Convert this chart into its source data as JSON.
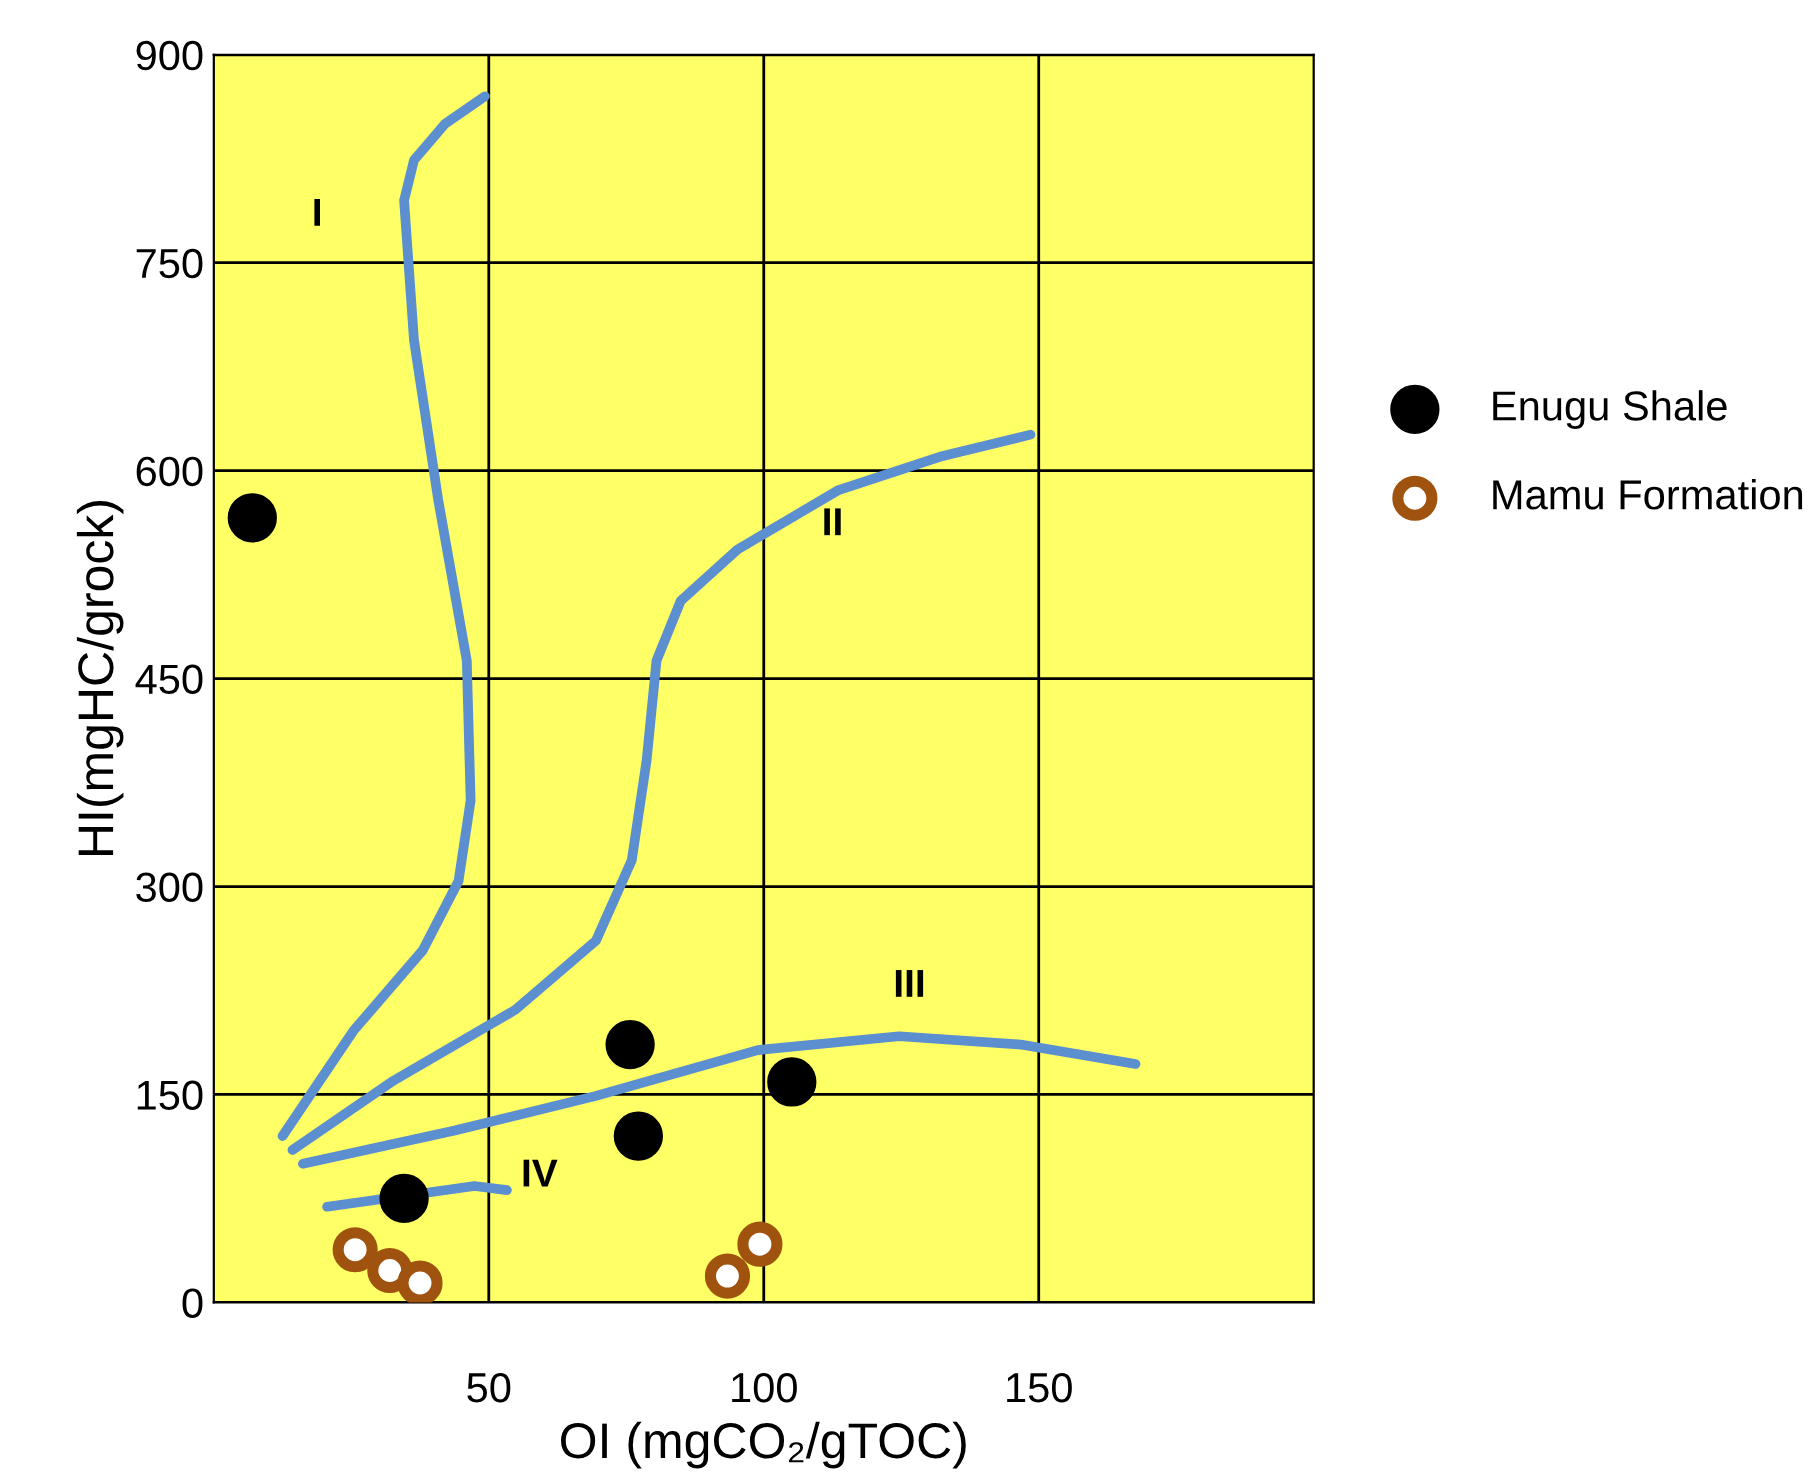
{
  "chart_data": {
    "type": "scatter",
    "xlabel": "OI (mgCO₂/gTOC)",
    "ylabel": "HI(mgHC/grock)",
    "xlim": [
      0,
      200
    ],
    "ylim": [
      0,
      900
    ],
    "xticks": [
      50,
      100,
      150
    ],
    "yticks": [
      0,
      150,
      300,
      450,
      600,
      750,
      900
    ],
    "grid": true,
    "legend": "right",
    "series": [
      {
        "type": "line",
        "color": "#5b8fd0",
        "x": [
          12.5,
          25.4,
          38,
          44.5,
          46.7,
          46,
          40.8,
          36.4,
          34.6,
          36.4,
          42,
          49.3
        ],
        "values": [
          120,
          196,
          254,
          304,
          362,
          463,
          579,
          694,
          795,
          824,
          850,
          870
        ]
      },
      {
        "type": "line",
        "color": "#5b8fd0",
        "x": [
          14.3,
          32.7,
          54.8,
          69.5,
          76,
          78.7,
          80.5,
          84.9,
          95.2,
          113.6,
          132,
          148.5
        ],
        "values": [
          110,
          160,
          211,
          261,
          319,
          391,
          463,
          506,
          543,
          586,
          610,
          626
        ]
      },
      {
        "type": "line",
        "color": "#5b8fd0",
        "x": [
          16.2,
          43.8,
          69.5,
          98.9,
          124.6,
          146.7,
          167.6
        ],
        "values": [
          100,
          124,
          149,
          182,
          192,
          186,
          172
        ]
      },
      {
        "type": "line",
        "color": "#5b8fd0",
        "x": [
          20.6,
          47.4,
          53.3
        ],
        "values": [
          69,
          84,
          81
        ]
      },
      {
        "name": "Enugu Shale",
        "color": "#000000",
        "marker": "circle",
        "x": [
          7,
          75.7,
          105.1,
          77.2,
          34.6
        ],
        "values": [
          566,
          186,
          159,
          120,
          75
        ]
      },
      {
        "name": "Mamu Formation",
        "color": "#a0520f",
        "marker": "circle",
        "x": [
          25.7,
          32,
          37.5,
          93.4,
          99.3
        ],
        "values": [
          38,
          23,
          14,
          19,
          42
        ]
      }
    ],
    "annotations": [
      "I",
      "II",
      "III",
      "IV"
    ]
  }
}
